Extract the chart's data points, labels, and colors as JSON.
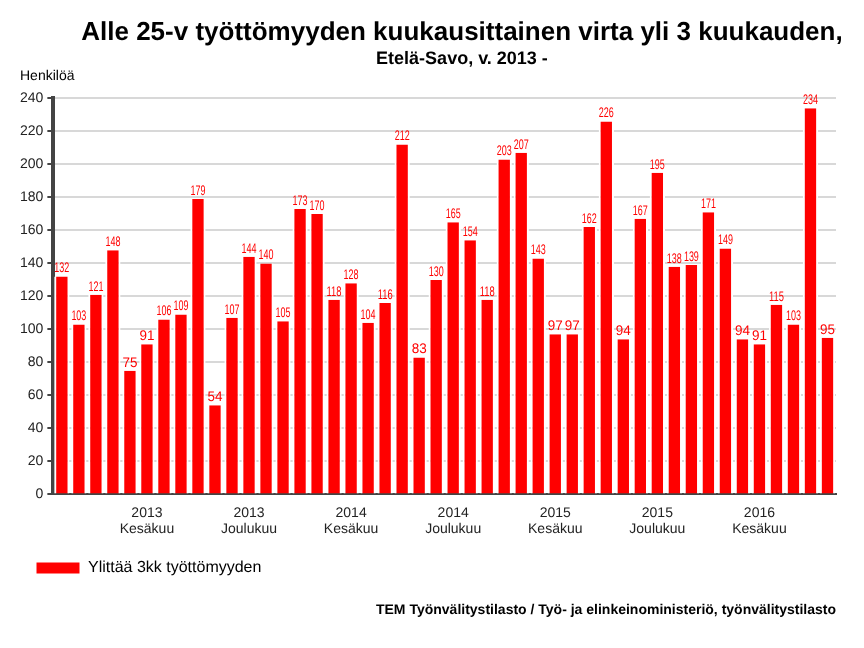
{
  "chart_data": {
    "type": "bar",
    "title": "Alle 25-v työttömyyden kuukausittainen virta yli 3 kuukauden,",
    "subtitle": "Etelä-Savo, v. 2013 -",
    "ylabel": "Henkilöä",
    "categories": [
      null,
      null,
      null,
      null,
      null,
      "2013\nKesäkuu",
      null,
      null,
      null,
      null,
      null,
      "2013\nJoulukuu",
      null,
      null,
      null,
      null,
      null,
      "2014\nKesäkuu",
      null,
      null,
      null,
      null,
      null,
      "2014\nJoulukuu",
      null,
      null,
      null,
      null,
      null,
      "2015\nKesäkuu",
      null,
      null,
      null,
      null,
      null,
      "2015\nJoulukuu",
      null,
      null,
      null,
      null,
      null,
      "2016\nKesäkuu",
      null,
      null,
      null,
      null
    ],
    "series": [
      {
        "name": "Ylittää 3kk työttömyyden",
        "color": "#ff0000",
        "values": [
          132,
          103,
          121,
          148,
          75,
          91,
          106,
          109,
          179,
          54,
          107,
          144,
          140,
          105,
          173,
          170,
          118,
          128,
          104,
          116,
          212,
          83,
          130,
          165,
          154,
          118,
          203,
          207,
          143,
          97,
          97,
          162,
          226,
          94,
          167,
          195,
          138,
          139,
          171,
          149,
          94,
          91,
          115,
          103,
          234,
          95
        ]
      }
    ],
    "ylim": [
      0,
      240
    ],
    "yticks": [
      0,
      20,
      40,
      60,
      80,
      100,
      120,
      140,
      160,
      180,
      200,
      220,
      240
    ],
    "grid": "y",
    "legend": "bottom left",
    "data_labels": true,
    "annotations": [
      "TEM Työnvälitystilasto / Työ- ja elinkeinoministeriö, työnvälitystilasto"
    ]
  }
}
